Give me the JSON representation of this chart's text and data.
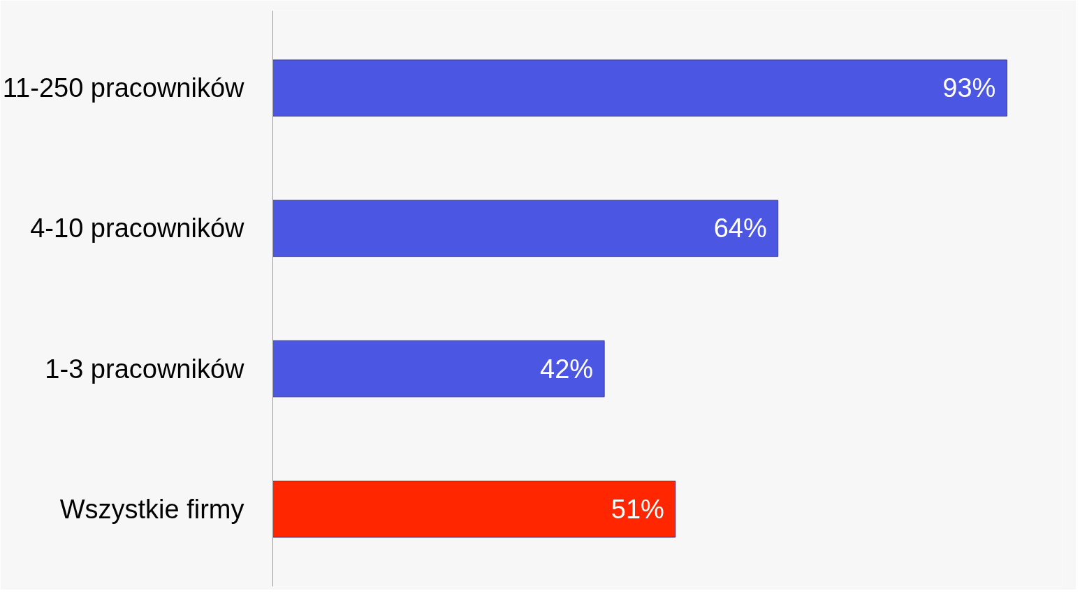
{
  "chart_data": {
    "type": "bar",
    "orientation": "horizontal",
    "categories": [
      "11-250 pracowników",
      "4-10 pracowników",
      "1-3 pracowników",
      "Wszystkie firmy"
    ],
    "values": [
      93,
      64,
      42,
      51
    ],
    "colors": [
      "#4b57e3",
      "#4b57e3",
      "#4b57e3",
      "#ff2600"
    ],
    "value_labels": [
      "93%",
      "64%",
      "42%",
      "51%"
    ],
    "xlim": [
      0,
      100
    ],
    "tick_labels": "y"
  }
}
